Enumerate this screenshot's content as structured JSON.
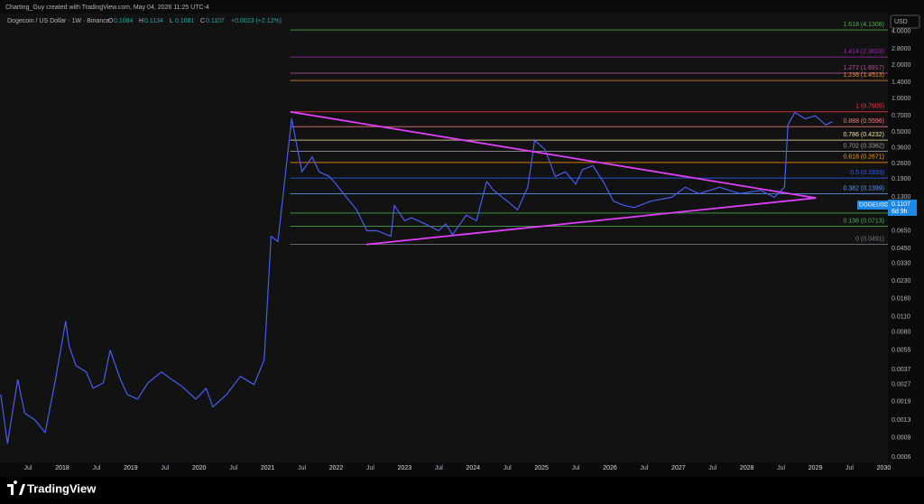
{
  "chart_data": {
    "type": "line",
    "watermark": "Charting_Guy created with TradingView.com, May 04, 2026 11:25 UTC-4",
    "symbol": "Dogecoin / US Dollar · 1W · Binance",
    "ohlc": [
      {
        "label": "O",
        "value": 0.1084
      },
      {
        "label": "H",
        "value": 0.1134
      },
      {
        "label": "L",
        "value": 0.1081
      },
      {
        "label": "C",
        "value": 0.1107
      }
    ],
    "change": "+0.0023 (+2.12%)",
    "currency": "USD",
    "brand": "TradingView",
    "log_scale": true,
    "xlim": [
      2017.09,
      2030.06
    ],
    "ylim": [
      0.00054,
      5.8
    ],
    "yticks": [
      {
        "value": 4,
        "label": "4.0000"
      },
      {
        "value": 2.8,
        "label": "2.8000"
      },
      {
        "value": 2,
        "label": "2.0000"
      },
      {
        "value": 1.4,
        "label": "1.4000"
      },
      {
        "value": 1,
        "label": "1.0000"
      },
      {
        "value": 0.7,
        "label": "0.7000"
      },
      {
        "value": 0.5,
        "label": "0.5000"
      },
      {
        "value": 0.36,
        "label": "0.3600"
      },
      {
        "value": 0.26,
        "label": "0.2600"
      },
      {
        "value": 0.19,
        "label": "0.1900"
      },
      {
        "value": 0.13,
        "label": "0.1300"
      },
      {
        "value": 0.095,
        "label": "0.0950"
      },
      {
        "value": 0.065,
        "label": "0.0650"
      },
      {
        "value": 0.045,
        "label": "0.0450"
      },
      {
        "value": 0.033,
        "label": "0.0330"
      },
      {
        "value": 0.023,
        "label": "0.0230"
      },
      {
        "value": 0.016,
        "label": "0.0160"
      },
      {
        "value": 0.011,
        "label": "0.0110"
      },
      {
        "value": 0.008,
        "label": "0.0080"
      },
      {
        "value": 0.0055,
        "label": "0.0055"
      },
      {
        "value": 0.0037,
        "label": "0.0037"
      },
      {
        "value": 0.0027,
        "label": "0.0027"
      },
      {
        "value": 0.0019,
        "label": "0.0019"
      },
      {
        "value": 0.0013,
        "label": "0.0013"
      },
      {
        "value": 0.0009,
        "label": "0.0009"
      },
      {
        "value": 0.0006,
        "label": "0.0006"
      }
    ],
    "xticks": [
      {
        "value": 2017.5,
        "label": "Jul"
      },
      2018,
      {
        "value": 2018.5,
        "label": "Jul"
      },
      2019,
      {
        "value": 2019.5,
        "label": "Jul"
      },
      2020,
      {
        "value": 2020.5,
        "label": "Jul"
      },
      2021,
      {
        "value": 2021.5,
        "label": "Jul"
      },
      2022,
      {
        "value": 2022.5,
        "label": "Jul"
      },
      2023,
      {
        "value": 2023.5,
        "label": "Jul"
      },
      2024,
      {
        "value": 2024.5,
        "label": "Jul"
      },
      2025,
      {
        "value": 2025.5,
        "label": "Jul"
      },
      2026,
      {
        "value": 2026.5,
        "label": "Jul"
      },
      2027,
      {
        "value": 2027.5,
        "label": "Jul"
      },
      2028,
      {
        "value": 2028.5,
        "label": "Jul"
      },
      2029,
      {
        "value": 2029.5,
        "label": "Jul"
      },
      2030
    ],
    "color": "#4a5cf0",
    "x": [
      2017.1,
      2017.2,
      2017.35,
      2017.45,
      2017.6,
      2017.75,
      2017.9,
      2018.05,
      2018.1,
      2018.2,
      2018.35,
      2018.45,
      2018.6,
      2018.7,
      2018.85,
      2018.95,
      2019.1,
      2019.25,
      2019.45,
      2019.6,
      2019.75,
      2019.95,
      2020.1,
      2020.2,
      2020.4,
      2020.6,
      2020.8,
      2020.95,
      2021.05,
      2021.15,
      2021.3,
      2021.35,
      2021.5,
      2021.65,
      2021.75,
      2021.9,
      2022.0,
      2022.15,
      2022.3,
      2022.45,
      2022.6,
      2022.8,
      2022.85,
      2023.0,
      2023.1,
      2023.3,
      2023.5,
      2023.6,
      2023.7,
      2023.9,
      2024.05,
      2024.2,
      2024.3,
      2024.5,
      2024.65,
      2024.8,
      2024.9,
      2025.05,
      2025.2,
      2025.35,
      2025.5,
      2025.6,
      2025.75,
      2025.9,
      2026.05,
      2026.2,
      2026.35,
      2026.6,
      2026.9,
      2027.1,
      2027.3,
      2027.6,
      2027.9,
      2028.2,
      2028.4,
      2028.55,
      2028.6,
      2028.7,
      2028.85,
      2029.0,
      2029.15,
      2029.25
    ],
    "values": [
      0.0022,
      0.0008,
      0.003,
      0.0015,
      0.0013,
      0.001,
      0.003,
      0.01,
      0.006,
      0.004,
      0.0035,
      0.0025,
      0.0028,
      0.0055,
      0.003,
      0.0022,
      0.002,
      0.0028,
      0.0035,
      0.003,
      0.0026,
      0.002,
      0.0025,
      0.0017,
      0.0022,
      0.0032,
      0.0027,
      0.0045,
      0.058,
      0.052,
      0.35,
      0.66,
      0.22,
      0.3,
      0.22,
      0.2,
      0.17,
      0.13,
      0.1,
      0.065,
      0.065,
      0.058,
      0.11,
      0.08,
      0.085,
      0.075,
      0.065,
      0.075,
      0.06,
      0.09,
      0.08,
      0.18,
      0.15,
      0.12,
      0.1,
      0.16,
      0.42,
      0.35,
      0.2,
      0.22,
      0.17,
      0.23,
      0.25,
      0.18,
      0.12,
      0.11,
      0.105,
      0.12,
      0.13,
      0.16,
      0.14,
      0.16,
      0.14,
      0.15,
      0.13,
      0.16,
      0.58,
      0.75,
      0.66,
      0.7,
      0.58,
      0.62
    ],
    "fib_start": 2021.33,
    "fib_levels": [
      {
        "label": "1.618 (4.1308)",
        "price": 4.1308,
        "color": "#4caf50"
      },
      {
        "label": "1.414 (2.3629)",
        "price": 2.3629,
        "color": "#9c27b0"
      },
      {
        "label": "1.272 (1.6917)",
        "price": 1.6917,
        "color": "#b5569c"
      },
      {
        "label": "1.236 (1.4513)",
        "price": 1.4513,
        "color": "#e08a3c"
      },
      {
        "label": "1 (0.7605)",
        "price": 0.7605,
        "color": "#f23645"
      },
      {
        "label": "0.888 (0.5596)",
        "price": 0.5596,
        "color": "#f77c80"
      },
      {
        "label": "0.786 (0.4232)",
        "price": 0.4232,
        "color": "#f0e0a0"
      },
      {
        "label": "0.702 (0.3362)",
        "price": 0.3362,
        "color": "#9e9e9e"
      },
      {
        "label": "0.618 (0.2671)",
        "price": 0.2671,
        "color": "#ff9800"
      },
      {
        "label": "0.5 (0.1933)",
        "price": 0.1933,
        "color": "#2962ff"
      },
      {
        "label": "0.382 (0.1399)",
        "price": 0.1399,
        "color": "#5b9cf6"
      },
      {
        "label": "0.236",
        "price": 0.0937,
        "color": "#4caf50"
      },
      {
        "label": "0.136 (0.0713)",
        "price": 0.0713,
        "color": "#4caf50"
      },
      {
        "label": "0 (0.0491)",
        "price": 0.0491,
        "color": "#787b86"
      }
    ],
    "trendlines": [
      {
        "color": "#e040fb",
        "x": [
          2021.33,
          2029.01
        ],
        "values": [
          0.76,
          0.128
        ]
      },
      {
        "color": "#e040fb",
        "x": [
          2022.44,
          2029.01
        ],
        "values": [
          0.049,
          0.128
        ]
      }
    ],
    "last_price": {
      "label": "DOGEUSD",
      "value": 0.1107,
      "countdown": "6d 9h"
    }
  }
}
